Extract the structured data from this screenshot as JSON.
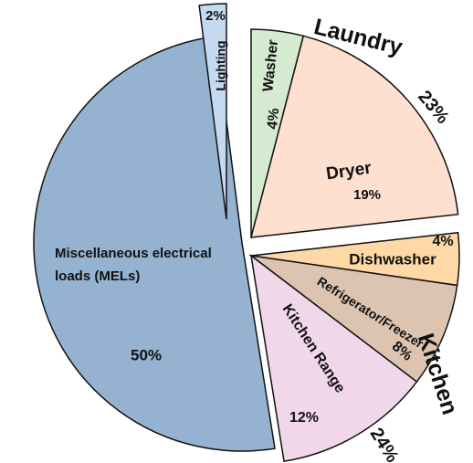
{
  "chart_data": {
    "type": "pie",
    "categories": [
      "Washer",
      "Dryer",
      "Dishwasher",
      "Refrigerator/Freezer",
      "Kitchen Range",
      "Miscellaneous electrical loads (MELs)",
      "Lighting"
    ],
    "values": [
      4,
      19,
      4,
      8,
      12,
      50,
      2
    ],
    "value_labels": [
      "4%",
      "19%",
      "4%",
      "8%",
      "12%",
      "50%",
      "2%"
    ],
    "colors": [
      "#d5ead0",
      "#fde0d0",
      "#fed9a6",
      "#dcc4b0",
      "#f0d8ea",
      "#95b3d0",
      "#c5d9f1"
    ],
    "groups": [
      {
        "name": "Laundry",
        "value": 23,
        "value_label": "23%"
      },
      {
        "name": "Kitchen",
        "value": 24,
        "value_label": "24%"
      }
    ]
  }
}
